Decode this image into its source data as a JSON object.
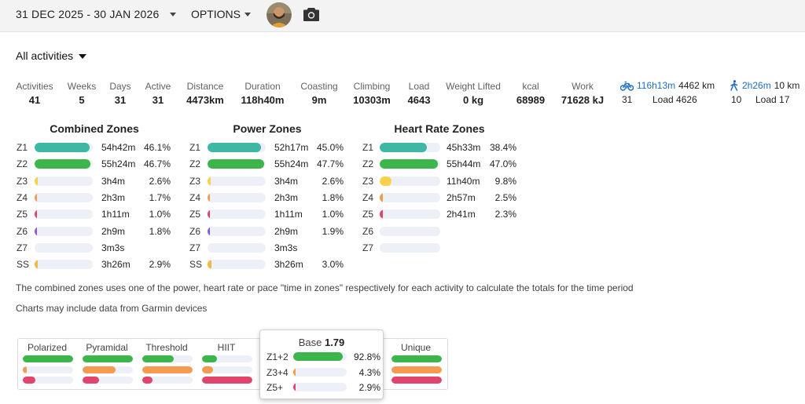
{
  "header": {
    "date_range": "31 DEC 2025 - 30 JAN 2026",
    "options_label": "OPTIONS",
    "avatar_icon": "user-avatar",
    "camera_icon": "camera-icon"
  },
  "filter": {
    "label": "All activities"
  },
  "summary": [
    {
      "label": "Activities",
      "value": "41"
    },
    {
      "label": "Weeks",
      "value": "5"
    },
    {
      "label": "Days",
      "value": "31"
    },
    {
      "label": "Active",
      "value": "31"
    },
    {
      "label": "Distance",
      "value": "4473km"
    },
    {
      "label": "Duration",
      "value": "118h40m"
    },
    {
      "label": "Coasting",
      "value": "9m"
    },
    {
      "label": "Climbing",
      "value": "10303m"
    },
    {
      "label": "Load",
      "value": "4643"
    },
    {
      "label": "Weight Lifted",
      "value": "0 kg"
    },
    {
      "label": "kcal",
      "value": "68989"
    },
    {
      "label": "Work",
      "value": "71628 kJ"
    }
  ],
  "sports": [
    {
      "icon": "bicycle-icon",
      "duration": "116h13m",
      "distance": "4462 km",
      "count": "31",
      "load": "Load 4626"
    },
    {
      "icon": "walking-icon",
      "duration": "2h26m",
      "distance": "10 km",
      "count": "10",
      "load": "Load 17"
    }
  ],
  "colors": {
    "z1": "#3db8a4",
    "z2": "#3cb64a",
    "z3": "#f7d24a",
    "z4": "#f59a4e",
    "z5": "#e2456b",
    "z6": "#8c5cd8",
    "ss": "#f5b54a",
    "track": "#eef0f8",
    "link": "#1e6fc2"
  },
  "zones": [
    {
      "title": "Combined Zones",
      "rows": [
        {
          "label": "Z1",
          "time": "54h42m",
          "pct": "46.1%",
          "value": 46.1,
          "color": "z1"
        },
        {
          "label": "Z2",
          "time": "55h24m",
          "pct": "46.7%",
          "value": 46.7,
          "color": "z2"
        },
        {
          "label": "Z3",
          "time": "3h4m",
          "pct": "2.6%",
          "value": 2.6,
          "color": "z3"
        },
        {
          "label": "Z4",
          "time": "2h3m",
          "pct": "1.7%",
          "value": 1.7,
          "color": "z4"
        },
        {
          "label": "Z5",
          "time": "1h11m",
          "pct": "1.0%",
          "value": 1.0,
          "color": "z5"
        },
        {
          "label": "Z6",
          "time": "2h9m",
          "pct": "1.8%",
          "value": 1.8,
          "color": "z6"
        },
        {
          "label": "Z7",
          "time": "3m3s",
          "pct": "",
          "value": 0,
          "color": "z5"
        },
        {
          "label": "SS",
          "time": "3h26m",
          "pct": "2.9%",
          "value": 2.9,
          "color": "ss"
        }
      ]
    },
    {
      "title": "Power Zones",
      "rows": [
        {
          "label": "Z1",
          "time": "52h17m",
          "pct": "45.0%",
          "value": 45.0,
          "color": "z1"
        },
        {
          "label": "Z2",
          "time": "55h24m",
          "pct": "47.7%",
          "value": 47.7,
          "color": "z2"
        },
        {
          "label": "Z3",
          "time": "3h4m",
          "pct": "2.6%",
          "value": 2.6,
          "color": "z3"
        },
        {
          "label": "Z4",
          "time": "2h3m",
          "pct": "1.8%",
          "value": 1.8,
          "color": "z4"
        },
        {
          "label": "Z5",
          "time": "1h11m",
          "pct": "1.0%",
          "value": 1.0,
          "color": "z5"
        },
        {
          "label": "Z6",
          "time": "2h9m",
          "pct": "1.9%",
          "value": 1.9,
          "color": "z6"
        },
        {
          "label": "Z7",
          "time": "3m3s",
          "pct": "",
          "value": 0,
          "color": "z5"
        },
        {
          "label": "SS",
          "time": "3h26m",
          "pct": "3.0%",
          "value": 3.0,
          "color": "ss"
        }
      ]
    },
    {
      "title": "Heart Rate Zones",
      "rows": [
        {
          "label": "Z1",
          "time": "45h33m",
          "pct": "38.4%",
          "value": 38.4,
          "color": "z1"
        },
        {
          "label": "Z2",
          "time": "55h44m",
          "pct": "47.0%",
          "value": 47.0,
          "color": "z2"
        },
        {
          "label": "Z3",
          "time": "11h40m",
          "pct": "9.8%",
          "value": 9.8,
          "color": "z3"
        },
        {
          "label": "Z4",
          "time": "2h57m",
          "pct": "2.5%",
          "value": 2.5,
          "color": "z4"
        },
        {
          "label": "Z5",
          "time": "2h41m",
          "pct": "2.3%",
          "value": 2.3,
          "color": "z5"
        },
        {
          "label": "Z6",
          "time": "",
          "pct": "",
          "value": 0,
          "color": "z6"
        },
        {
          "label": "Z7",
          "time": "",
          "pct": "",
          "value": 0,
          "color": "z5"
        }
      ]
    }
  ],
  "notes": [
    "The combined zones uses one of the power, heart rate or pace \"time in zones\" respectively for each activity to calculate the totals for the time period",
    "Charts may include data from Garmin devices"
  ],
  "distribution": [
    {
      "name": "Polarized",
      "bars": [
        100,
        8,
        25
      ]
    },
    {
      "name": "Pyramidal",
      "bars": [
        100,
        65,
        33
      ]
    },
    {
      "name": "Threshold",
      "bars": [
        62,
        100,
        20
      ]
    },
    {
      "name": "HIIT",
      "bars": [
        30,
        22,
        100
      ]
    },
    {
      "name": "Unique",
      "bars": [
        100,
        100,
        100
      ]
    }
  ],
  "base_popup": {
    "title": "Base",
    "score": "1.79",
    "rows": [
      {
        "label": "Z1+2",
        "pct": "92.8%",
        "value": 92.8
      },
      {
        "label": "Z3+4",
        "pct": "4.3%",
        "value": 4.3
      },
      {
        "label": "Z5+",
        "pct": "2.9%",
        "value": 2.9
      }
    ]
  }
}
